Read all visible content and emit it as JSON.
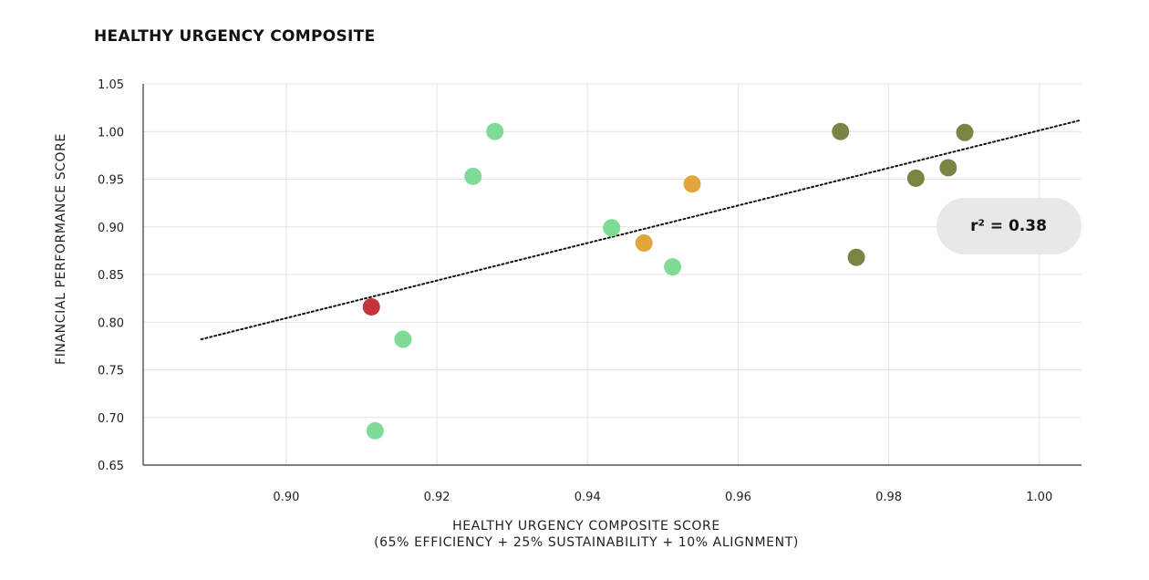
{
  "title": "HEALTHY URGENCY COMPOSITE",
  "chart_data": {
    "type": "scatter",
    "title": "HEALTHY URGENCY COMPOSITE",
    "xlabel": "HEALTHY URGENCY COMPOSITE SCORE",
    "xlabel_sub": "(65% EFFICIENCY + 25% SUSTAINABILITY + 10% ALIGNMENT)",
    "ylabel": "FINANCIAL PERFORMANCE SCORE",
    "xlim": [
      0.881,
      1.0056
    ],
    "ylim": [
      0.65,
      1.05
    ],
    "x_ticks": [
      "0.90",
      "0.92",
      "0.94",
      "0.96",
      "0.98",
      "1.00"
    ],
    "y_ticks": [
      "1.05",
      "1.00",
      "0.95",
      "0.90",
      "0.85",
      "0.80",
      "0.75",
      "0.70",
      "0.65"
    ],
    "grid": true,
    "points": [
      {
        "x": 0.9277,
        "y": 1.0,
        "color": "#7fdc97"
      },
      {
        "x": 0.9248,
        "y": 0.953,
        "color": "#7fdc97"
      },
      {
        "x": 0.9432,
        "y": 0.899,
        "color": "#7fdc97"
      },
      {
        "x": 0.9513,
        "y": 0.858,
        "color": "#7fdc97"
      },
      {
        "x": 0.9155,
        "y": 0.782,
        "color": "#7fdc97"
      },
      {
        "x": 0.9118,
        "y": 0.686,
        "color": "#7fdc97"
      },
      {
        "x": 0.9113,
        "y": 0.816,
        "color": "#c4343b"
      },
      {
        "x": 0.9539,
        "y": 0.945,
        "color": "#e0a63c"
      },
      {
        "x": 0.9475,
        "y": 0.883,
        "color": "#e0a63c"
      },
      {
        "x": 0.9736,
        "y": 1.0,
        "color": "#788543"
      },
      {
        "x": 0.9901,
        "y": 0.999,
        "color": "#788543"
      },
      {
        "x": 0.9836,
        "y": 0.951,
        "color": "#788543"
      },
      {
        "x": 0.9879,
        "y": 0.962,
        "color": "#788543"
      },
      {
        "x": 0.9757,
        "y": 0.868,
        "color": "#788543"
      }
    ],
    "trendline": {
      "x": [
        0.8887,
        1.0055
      ],
      "y": [
        0.782,
        1.012
      ],
      "style": "dotted"
    },
    "annotation": "r² = 0.38"
  }
}
